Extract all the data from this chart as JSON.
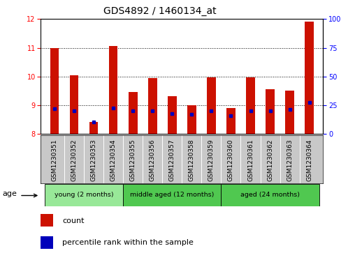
{
  "title": "GDS4892 / 1460134_at",
  "samples": [
    "GSM1230351",
    "GSM1230352",
    "GSM1230353",
    "GSM1230354",
    "GSM1230355",
    "GSM1230356",
    "GSM1230357",
    "GSM1230358",
    "GSM1230359",
    "GSM1230360",
    "GSM1230361",
    "GSM1230362",
    "GSM1230363",
    "GSM1230364"
  ],
  "count_values": [
    11.0,
    10.05,
    8.42,
    11.05,
    9.47,
    9.95,
    9.32,
    9.0,
    9.97,
    8.9,
    9.97,
    9.55,
    9.52,
    11.92
  ],
  "count_base": 8.0,
  "percentile_values": [
    22.0,
    20.0,
    10.5,
    22.5,
    20.0,
    20.5,
    17.5,
    17.0,
    20.5,
    16.0,
    20.5,
    20.5,
    21.5,
    27.5
  ],
  "ylim_left": [
    8,
    12
  ],
  "ylim_right": [
    0,
    100
  ],
  "yticks_left": [
    8,
    9,
    10,
    11,
    12
  ],
  "yticks_right": [
    0,
    25,
    50,
    75,
    100
  ],
  "group_labels": [
    "young (2 months)",
    "middle aged (12 months)",
    "aged (24 months)"
  ],
  "group_starts": [
    0,
    4,
    9
  ],
  "group_ends": [
    4,
    9,
    14
  ],
  "group_colors": [
    "#98E898",
    "#50C850",
    "#50C850"
  ],
  "bar_color": "#CC1100",
  "dot_color": "#0000BB",
  "bar_width": 0.45,
  "background_color": "#FFFFFF",
  "tick_bg_color": "#C8C8C8",
  "age_label": "age",
  "legend_count_label": "count",
  "legend_percentile_label": "percentile rank within the sample",
  "title_fontsize": 10,
  "tick_fontsize": 7,
  "label_fontsize": 8
}
